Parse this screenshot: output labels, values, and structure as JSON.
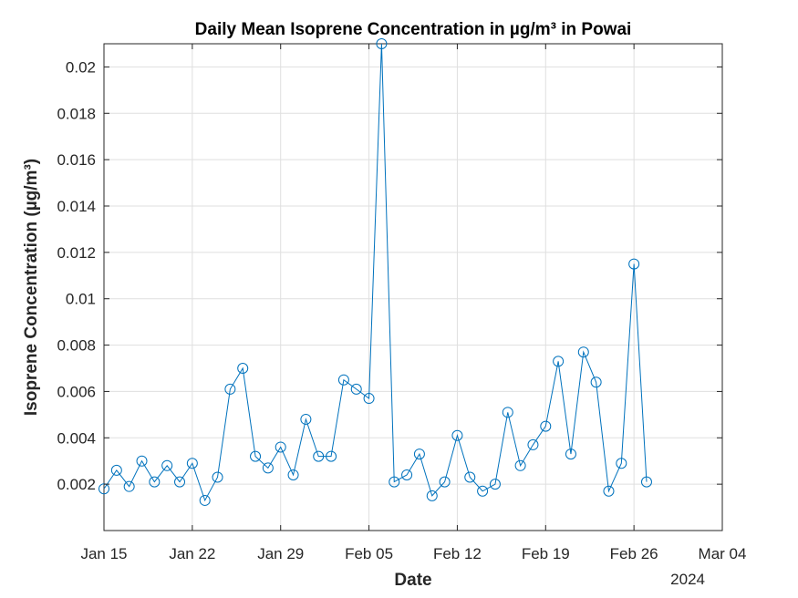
{
  "chart_data": {
    "type": "line",
    "title": "Daily Mean Isoprene Concentration in µg/m³ in Powai",
    "xlabel": "Date",
    "ylabel": "Isoprene Concentration (µg/m³)",
    "x_year_label": "2024",
    "xlim": [
      "2024-01-15",
      "2024-03-04"
    ],
    "ylim": [
      0.0,
      0.021
    ],
    "grid": true,
    "x_ticks": [
      {
        "date": "2024-01-15",
        "label": "Jan 15"
      },
      {
        "date": "2024-01-22",
        "label": "Jan 22"
      },
      {
        "date": "2024-01-29",
        "label": "Jan 29"
      },
      {
        "date": "2024-02-05",
        "label": "Feb 05"
      },
      {
        "date": "2024-02-12",
        "label": "Feb 12"
      },
      {
        "date": "2024-02-19",
        "label": "Feb 19"
      },
      {
        "date": "2024-02-26",
        "label": "Feb 26"
      },
      {
        "date": "2024-03-04",
        "label": "Mar 04"
      }
    ],
    "y_ticks": [
      {
        "value": 0.002,
        "label": "0.002"
      },
      {
        "value": 0.004,
        "label": "0.004"
      },
      {
        "value": 0.006,
        "label": "0.006"
      },
      {
        "value": 0.008,
        "label": "0.008"
      },
      {
        "value": 0.01,
        "label": "0.01"
      },
      {
        "value": 0.012,
        "label": "0.012"
      },
      {
        "value": 0.014,
        "label": "0.014"
      },
      {
        "value": 0.016,
        "label": "0.016"
      },
      {
        "value": 0.018,
        "label": "0.018"
      },
      {
        "value": 0.02,
        "label": "0.02"
      }
    ],
    "series": [
      {
        "color": "#0072bd",
        "marker": "circle",
        "x": [
          "2024-01-15",
          "2024-01-16",
          "2024-01-17",
          "2024-01-18",
          "2024-01-19",
          "2024-01-20",
          "2024-01-21",
          "2024-01-22",
          "2024-01-23",
          "2024-01-24",
          "2024-01-25",
          "2024-01-26",
          "2024-01-27",
          "2024-01-28",
          "2024-01-29",
          "2024-01-30",
          "2024-01-31",
          "2024-02-01",
          "2024-02-02",
          "2024-02-03",
          "2024-02-04",
          "2024-02-05",
          "2024-02-06",
          "2024-02-07",
          "2024-02-08",
          "2024-02-09",
          "2024-02-10",
          "2024-02-11",
          "2024-02-12",
          "2024-02-13",
          "2024-02-14",
          "2024-02-15",
          "2024-02-16",
          "2024-02-17",
          "2024-02-18",
          "2024-02-19",
          "2024-02-20",
          "2024-02-21",
          "2024-02-22",
          "2024-02-23",
          "2024-02-24",
          "2024-02-25",
          "2024-02-26",
          "2024-02-27"
        ],
        "values": [
          0.0018,
          0.0026,
          0.0019,
          0.003,
          0.0021,
          0.0028,
          0.0021,
          0.0029,
          0.0013,
          0.0023,
          0.0061,
          0.007,
          0.0032,
          0.0027,
          0.0036,
          0.0024,
          0.0048,
          0.0032,
          0.0032,
          0.0065,
          0.0061,
          0.0057,
          0.021,
          0.0021,
          0.0024,
          0.0033,
          0.0015,
          0.0021,
          0.0041,
          0.0023,
          0.0017,
          0.002,
          0.0051,
          0.0028,
          0.0037,
          0.0045,
          0.0073,
          0.0033,
          0.0077,
          0.0064,
          0.0017,
          0.0029,
          0.0115,
          0.0021
        ]
      }
    ]
  }
}
